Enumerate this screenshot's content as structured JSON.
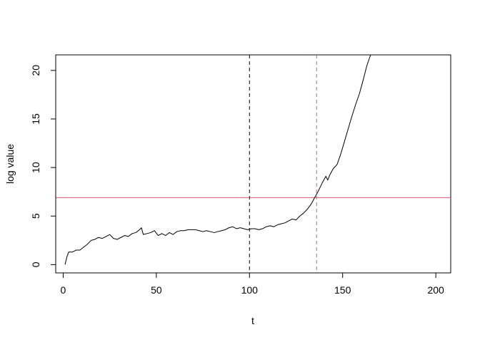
{
  "chart_data": {
    "type": "line",
    "title": "",
    "xlabel": "t",
    "ylabel": "log value",
    "xlim": [
      -4,
      208
    ],
    "ylim": [
      -0.85,
      21.6
    ],
    "xticks": [
      0,
      50,
      100,
      150,
      200
    ],
    "yticks": [
      0,
      5,
      10,
      15,
      20
    ],
    "grid": false,
    "legend": "none",
    "series": [
      {
        "color": "#000000",
        "x": [
          1,
          2,
          3,
          5,
          7,
          9,
          11,
          13,
          15,
          17,
          19,
          21,
          23,
          25,
          27,
          29,
          31,
          33,
          35,
          37,
          39,
          41,
          42,
          43,
          45,
          47,
          49,
          51,
          53,
          55,
          57,
          59,
          61,
          63,
          65,
          67,
          69,
          71,
          73,
          75,
          77,
          79,
          81,
          83,
          85,
          87,
          89,
          91,
          93,
          95,
          97,
          99,
          101,
          103,
          105,
          107,
          109,
          111,
          113,
          115,
          117,
          119,
          121,
          123,
          125,
          127,
          129,
          131,
          133,
          135,
          137,
          139,
          141,
          142,
          143,
          145,
          147,
          149,
          151,
          153,
          155,
          157,
          159,
          161,
          163,
          165
        ],
        "y": [
          0,
          0.8,
          1.3,
          1.3,
          1.5,
          1.5,
          1.8,
          2.1,
          2.5,
          2.6,
          2.8,
          2.7,
          2.9,
          3.1,
          2.7,
          2.6,
          2.8,
          3.0,
          2.9,
          3.2,
          3.3,
          3.6,
          3.8,
          3.1,
          3.2,
          3.3,
          3.5,
          3.0,
          3.2,
          3.0,
          3.3,
          3.1,
          3.4,
          3.5,
          3.5,
          3.6,
          3.6,
          3.6,
          3.5,
          3.4,
          3.5,
          3.4,
          3.3,
          3.4,
          3.5,
          3.6,
          3.8,
          3.9,
          3.7,
          3.8,
          3.7,
          3.6,
          3.7,
          3.7,
          3.6,
          3.7,
          3.9,
          4.0,
          3.9,
          4.1,
          4.2,
          4.3,
          4.5,
          4.7,
          4.6,
          5.0,
          5.3,
          5.7,
          6.2,
          6.9,
          7.6,
          8.4,
          9.1,
          8.7,
          9.2,
          9.9,
          10.3,
          11.4,
          12.7,
          14.0,
          15.3,
          16.5,
          17.6,
          19.0,
          20.5,
          21.6
        ]
      }
    ],
    "reference_lines": [
      {
        "orientation": "horizontal",
        "value": 6.9,
        "color": "#DF536B",
        "style": "solid"
      },
      {
        "orientation": "vertical",
        "value": 100,
        "color": "#000000",
        "style": "dashed"
      },
      {
        "orientation": "vertical",
        "value": 136,
        "color": "#DF536B",
        "style": "dashed"
      }
    ]
  }
}
